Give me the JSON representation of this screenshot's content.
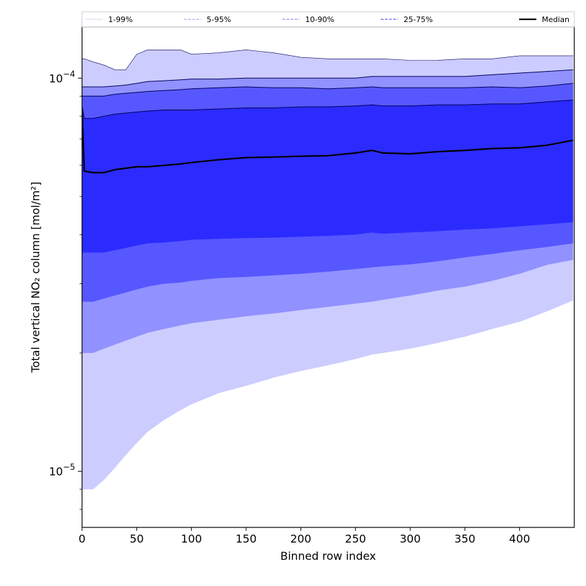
{
  "chart_data": {
    "type": "area",
    "title": "",
    "xlabel": "Binned row index",
    "ylabel": "Total vertical NO₂ column [mol/m²]",
    "y_scale": "log",
    "xlim": [
      0,
      450
    ],
    "ylim": [
      7.2e-06,
      0.000135
    ],
    "x_ticks": [
      0,
      50,
      100,
      150,
      200,
      250,
      300,
      350,
      400
    ],
    "x_tick_labels": [
      "0",
      "50",
      "100",
      "150",
      "200",
      "250",
      "300",
      "350",
      "400"
    ],
    "y_major_ticks": [
      1e-05,
      0.0001
    ],
    "y_tick_labels": [
      {
        "base": "10",
        "exp": "−5"
      },
      {
        "base": "10",
        "exp": "−4"
      }
    ],
    "grid": false,
    "legend_placement": "top, above plot",
    "legend": [
      {
        "label": "1-99%",
        "style": "solid",
        "color": "#ddddf5"
      },
      {
        "label": "5-95%",
        "style": "dash",
        "color": "#b0b0ee"
      },
      {
        "label": "10-90%",
        "style": "dash",
        "color": "#8c8cf0"
      },
      {
        "label": "25-75%",
        "style": "dash",
        "color": "#5a5af2"
      },
      {
        "label": "Median",
        "style": "solid",
        "color": "#000000"
      }
    ],
    "x": [
      0,
      2,
      10,
      20,
      30,
      40,
      50,
      60,
      75,
      90,
      100,
      125,
      150,
      175,
      200,
      225,
      250,
      265,
      275,
      300,
      325,
      350,
      375,
      400,
      425,
      449
    ],
    "series": [
      {
        "name": "1-99%",
        "color": "#ccccff",
        "lower": [
          9e-06,
          9e-06,
          9e-06,
          9.5e-06,
          1.02e-05,
          1.1e-05,
          1.18e-05,
          1.26e-05,
          1.35e-05,
          1.43e-05,
          1.48e-05,
          1.58e-05,
          1.65e-05,
          1.73e-05,
          1.8e-05,
          1.86e-05,
          1.93e-05,
          1.98e-05,
          2e-05,
          2.05e-05,
          2.12e-05,
          2.2e-05,
          2.3e-05,
          2.4e-05,
          2.55e-05,
          2.72e-05
        ],
        "upper": [
          0.000112,
          0.000112,
          0.00011,
          0.000108,
          0.000105,
          0.000105,
          0.000115,
          0.000118,
          0.000118,
          0.000118,
          0.000115,
          0.000116,
          0.000118,
          0.000116,
          0.000113,
          0.000112,
          0.000112,
          0.000112,
          0.000112,
          0.000111,
          0.000111,
          0.000112,
          0.000112,
          0.000114,
          0.000114,
          0.000114
        ]
      },
      {
        "name": "5-95%",
        "color": "#9191ff",
        "lower": [
          2e-05,
          2e-05,
          2e-05,
          2.05e-05,
          2.1e-05,
          2.15e-05,
          2.2e-05,
          2.25e-05,
          2.3e-05,
          2.35e-05,
          2.38e-05,
          2.43e-05,
          2.48e-05,
          2.52e-05,
          2.57e-05,
          2.62e-05,
          2.67e-05,
          2.7e-05,
          2.73e-05,
          2.8e-05,
          2.88e-05,
          2.95e-05,
          3.05e-05,
          3.18e-05,
          3.35e-05,
          3.45e-05
        ],
        "upper": [
          9.5e-05,
          9.5e-05,
          9.5e-05,
          9.5e-05,
          9.55e-05,
          9.6e-05,
          9.7e-05,
          9.8e-05,
          9.85e-05,
          9.9e-05,
          9.95e-05,
          9.95e-05,
          0.0001,
          0.0001,
          0.0001,
          0.0001,
          0.0001,
          0.000101,
          0.000101,
          0.000101,
          0.000101,
          0.000101,
          0.000102,
          0.000103,
          0.000104,
          0.000105
        ]
      },
      {
        "name": "10-90%",
        "color": "#5757ff",
        "lower": [
          2.7e-05,
          2.7e-05,
          2.7e-05,
          2.75e-05,
          2.8e-05,
          2.85e-05,
          2.9e-05,
          2.95e-05,
          3e-05,
          3.02e-05,
          3.05e-05,
          3.1e-05,
          3.12e-05,
          3.15e-05,
          3.18e-05,
          3.22e-05,
          3.27e-05,
          3.3e-05,
          3.32e-05,
          3.36e-05,
          3.42e-05,
          3.5e-05,
          3.57e-05,
          3.65e-05,
          3.72e-05,
          3.8e-05
        ],
        "upper": [
          9e-05,
          9e-05,
          9e-05,
          9e-05,
          9.1e-05,
          9.15e-05,
          9.2e-05,
          9.25e-05,
          9.3e-05,
          9.35e-05,
          9.4e-05,
          9.45e-05,
          9.5e-05,
          9.45e-05,
          9.45e-05,
          9.4e-05,
          9.45e-05,
          9.5e-05,
          9.45e-05,
          9.45e-05,
          9.45e-05,
          9.45e-05,
          9.5e-05,
          9.45e-05,
          9.55e-05,
          9.7e-05
        ]
      },
      {
        "name": "25-75%",
        "color": "#2b2bff",
        "lower": [
          3.6e-05,
          3.6e-05,
          3.6e-05,
          3.6e-05,
          3.65e-05,
          3.7e-05,
          3.75e-05,
          3.8e-05,
          3.82e-05,
          3.85e-05,
          3.88e-05,
          3.9e-05,
          3.92e-05,
          3.93e-05,
          3.95e-05,
          3.97e-05,
          4e-05,
          4.05e-05,
          4.02e-05,
          4.05e-05,
          4.08e-05,
          4.12e-05,
          4.15e-05,
          4.2e-05,
          4.25e-05,
          4.3e-05
        ],
        "upper": [
          8.5e-05,
          7.9e-05,
          7.9e-05,
          8e-05,
          8.1e-05,
          8.15e-05,
          8.2e-05,
          8.25e-05,
          8.3e-05,
          8.3e-05,
          8.3e-05,
          8.35e-05,
          8.4e-05,
          8.4e-05,
          8.45e-05,
          8.45e-05,
          8.5e-05,
          8.55e-05,
          8.5e-05,
          8.5e-05,
          8.55e-05,
          8.55e-05,
          8.6e-05,
          8.6e-05,
          8.7e-05,
          8.8e-05
        ]
      },
      {
        "name": "Median",
        "color": "#000000",
        "values": [
          8.3e-05,
          5.8e-05,
          5.75e-05,
          5.75e-05,
          5.85e-05,
          5.9e-05,
          5.95e-05,
          5.95e-05,
          6e-05,
          6.05e-05,
          6.1e-05,
          6.2e-05,
          6.28e-05,
          6.3e-05,
          6.33e-05,
          6.35e-05,
          6.45e-05,
          6.55e-05,
          6.45e-05,
          6.42e-05,
          6.5e-05,
          6.55e-05,
          6.62e-05,
          6.65e-05,
          6.75e-05,
          6.95e-05
        ]
      }
    ]
  }
}
